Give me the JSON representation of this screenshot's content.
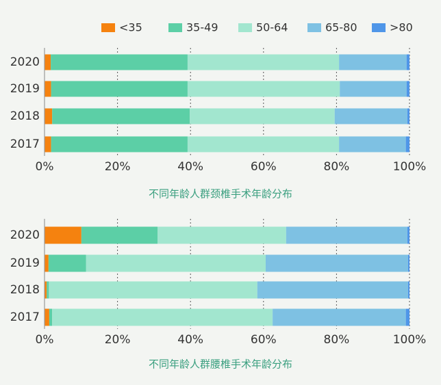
{
  "chart_data": [
    {
      "type": "stacked-bar-horizontal",
      "title": "不同年龄人群颈椎手术年龄分布",
      "categories": [
        "2020",
        "2019",
        "2018",
        "2017"
      ],
      "series": [
        {
          "name": "<35",
          "color": "#f5820f",
          "values": [
            1.7,
            1.8,
            2.1,
            1.8
          ]
        },
        {
          "name": "35-49",
          "color": "#5ccfa6",
          "values": [
            37.5,
            37.4,
            37.7,
            37.4
          ]
        },
        {
          "name": "50-64",
          "color": "#a2e6cf",
          "values": [
            41.5,
            41.7,
            39.7,
            41.5
          ]
        },
        {
          "name": "65-80",
          "color": "#7ec1e3",
          "values": [
            18.5,
            18.3,
            19.9,
            18.3
          ]
        },
        {
          "name": ">80",
          "color": "#4f96e8",
          "values": [
            0.8,
            0.8,
            0.6,
            1.0
          ]
        }
      ],
      "xlim": [
        0,
        100
      ],
      "xticks": [
        {
          "value": 0,
          "label": "0%"
        },
        {
          "value": 20,
          "label": "20%"
        },
        {
          "value": 40,
          "label": "40%"
        },
        {
          "value": 60,
          "label": "60%"
        },
        {
          "value": 80,
          "label": "80%"
        },
        {
          "value": 100,
          "label": "100%"
        }
      ],
      "grid": true
    },
    {
      "type": "stacked-bar-horizontal",
      "title": "不同年龄人群腰椎手术年龄分布",
      "categories": [
        "2020",
        "2019",
        "2018",
        "2017"
      ],
      "series": [
        {
          "color": "#f5820f",
          "values": [
            10.1,
            1.1,
            0.6,
            1.3
          ]
        },
        {
          "color": "#5ccfa6",
          "values": [
            20.9,
            10.3,
            0.6,
            0.8
          ]
        },
        {
          "color": "#a2e6cf",
          "values": [
            35.2,
            49.2,
            57.1,
            60.4
          ]
        },
        {
          "color": "#7ec1e3",
          "values": [
            33.2,
            39.0,
            41.3,
            36.5
          ]
        },
        {
          "color": "#4f96e8",
          "values": [
            0.6,
            0.4,
            0.4,
            1.0
          ]
        }
      ],
      "xlim": [
        0,
        100
      ],
      "xticks": [
        {
          "value": 0,
          "label": "0%"
        },
        {
          "value": 20,
          "label": "20%"
        },
        {
          "value": 40,
          "label": "40%"
        },
        {
          "value": 60,
          "label": "60%"
        },
        {
          "value": 80,
          "label": "80%"
        },
        {
          "value": 100,
          "label": "100%"
        }
      ],
      "grid": true
    }
  ]
}
